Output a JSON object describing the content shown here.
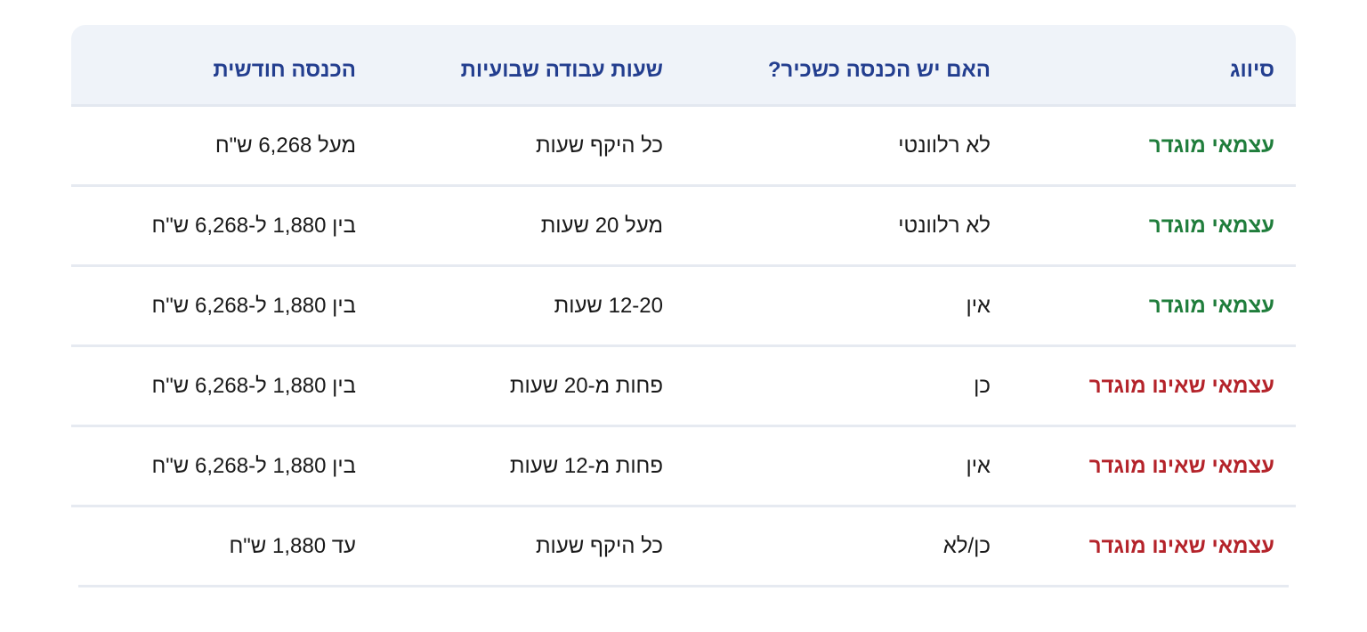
{
  "headers": [
    "סיווג",
    "האם יש הכנסה כשכיר?",
    "שעות עבודה שבועיות",
    "הכנסה חודשית"
  ],
  "colors": {
    "header": "#233e8f",
    "defined": "#1f7d3b",
    "undefined": "#b4232a",
    "header_bg": "#eff3f9"
  },
  "rows": [
    {
      "status": "defined",
      "classification": "עצמאי מוגדר",
      "salaried": "לא רלוונטי",
      "hours": "כל היקף שעות",
      "income": "מעל 6,268 ש\"ח"
    },
    {
      "status": "defined",
      "classification": "עצמאי מוגדר",
      "salaried": "לא רלוונטי",
      "hours": "מעל 20 שעות",
      "income": "בין 1,880 ל-6,268 ש\"ח"
    },
    {
      "status": "defined",
      "classification": "עצמאי מוגדר",
      "salaried": "אין",
      "hours": "12-20 שעות",
      "income": "בין 1,880 ל-6,268 ש\"ח"
    },
    {
      "status": "undefined",
      "classification": "עצמאי שאינו מוגדר",
      "salaried": "כן",
      "hours": "פחות מ-20 שעות",
      "income": "בין 1,880 ל-6,268 ש\"ח"
    },
    {
      "status": "undefined",
      "classification": "עצמאי שאינו מוגדר",
      "salaried": "אין",
      "hours": "פחות מ-12 שעות",
      "income": "בין 1,880 ל-6,268 ש\"ח"
    },
    {
      "status": "undefined",
      "classification": "עצמאי שאינו מוגדר",
      "salaried": "כן/לא",
      "hours": "כל היקף שעות",
      "income": "עד 1,880 ש\"ח"
    }
  ]
}
